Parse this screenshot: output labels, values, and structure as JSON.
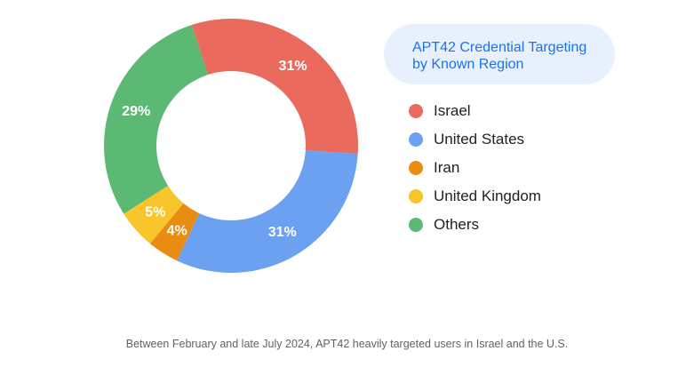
{
  "chart_data": {
    "type": "pie",
    "title": "APT42 Credential Targeting\nby Known Region",
    "slices": [
      {
        "label": "Israel",
        "value": 31,
        "display": "31%",
        "color": "#ea6a5e"
      },
      {
        "label": "United States",
        "value": 31,
        "display": "31%",
        "color": "#6ca1f2"
      },
      {
        "label": "Iran",
        "value": 4,
        "display": "4%",
        "color": "#e88d12"
      },
      {
        "label": "United Kingdom",
        "value": 5,
        "display": "5%",
        "color": "#f8c52a"
      },
      {
        "label": "Others",
        "value": 29,
        "display": "29%",
        "color": "#5bb974"
      }
    ],
    "legend_position": "right"
  },
  "caption": "Between February and late July 2024, APT42 heavily targeted users in Israel and the U.S."
}
